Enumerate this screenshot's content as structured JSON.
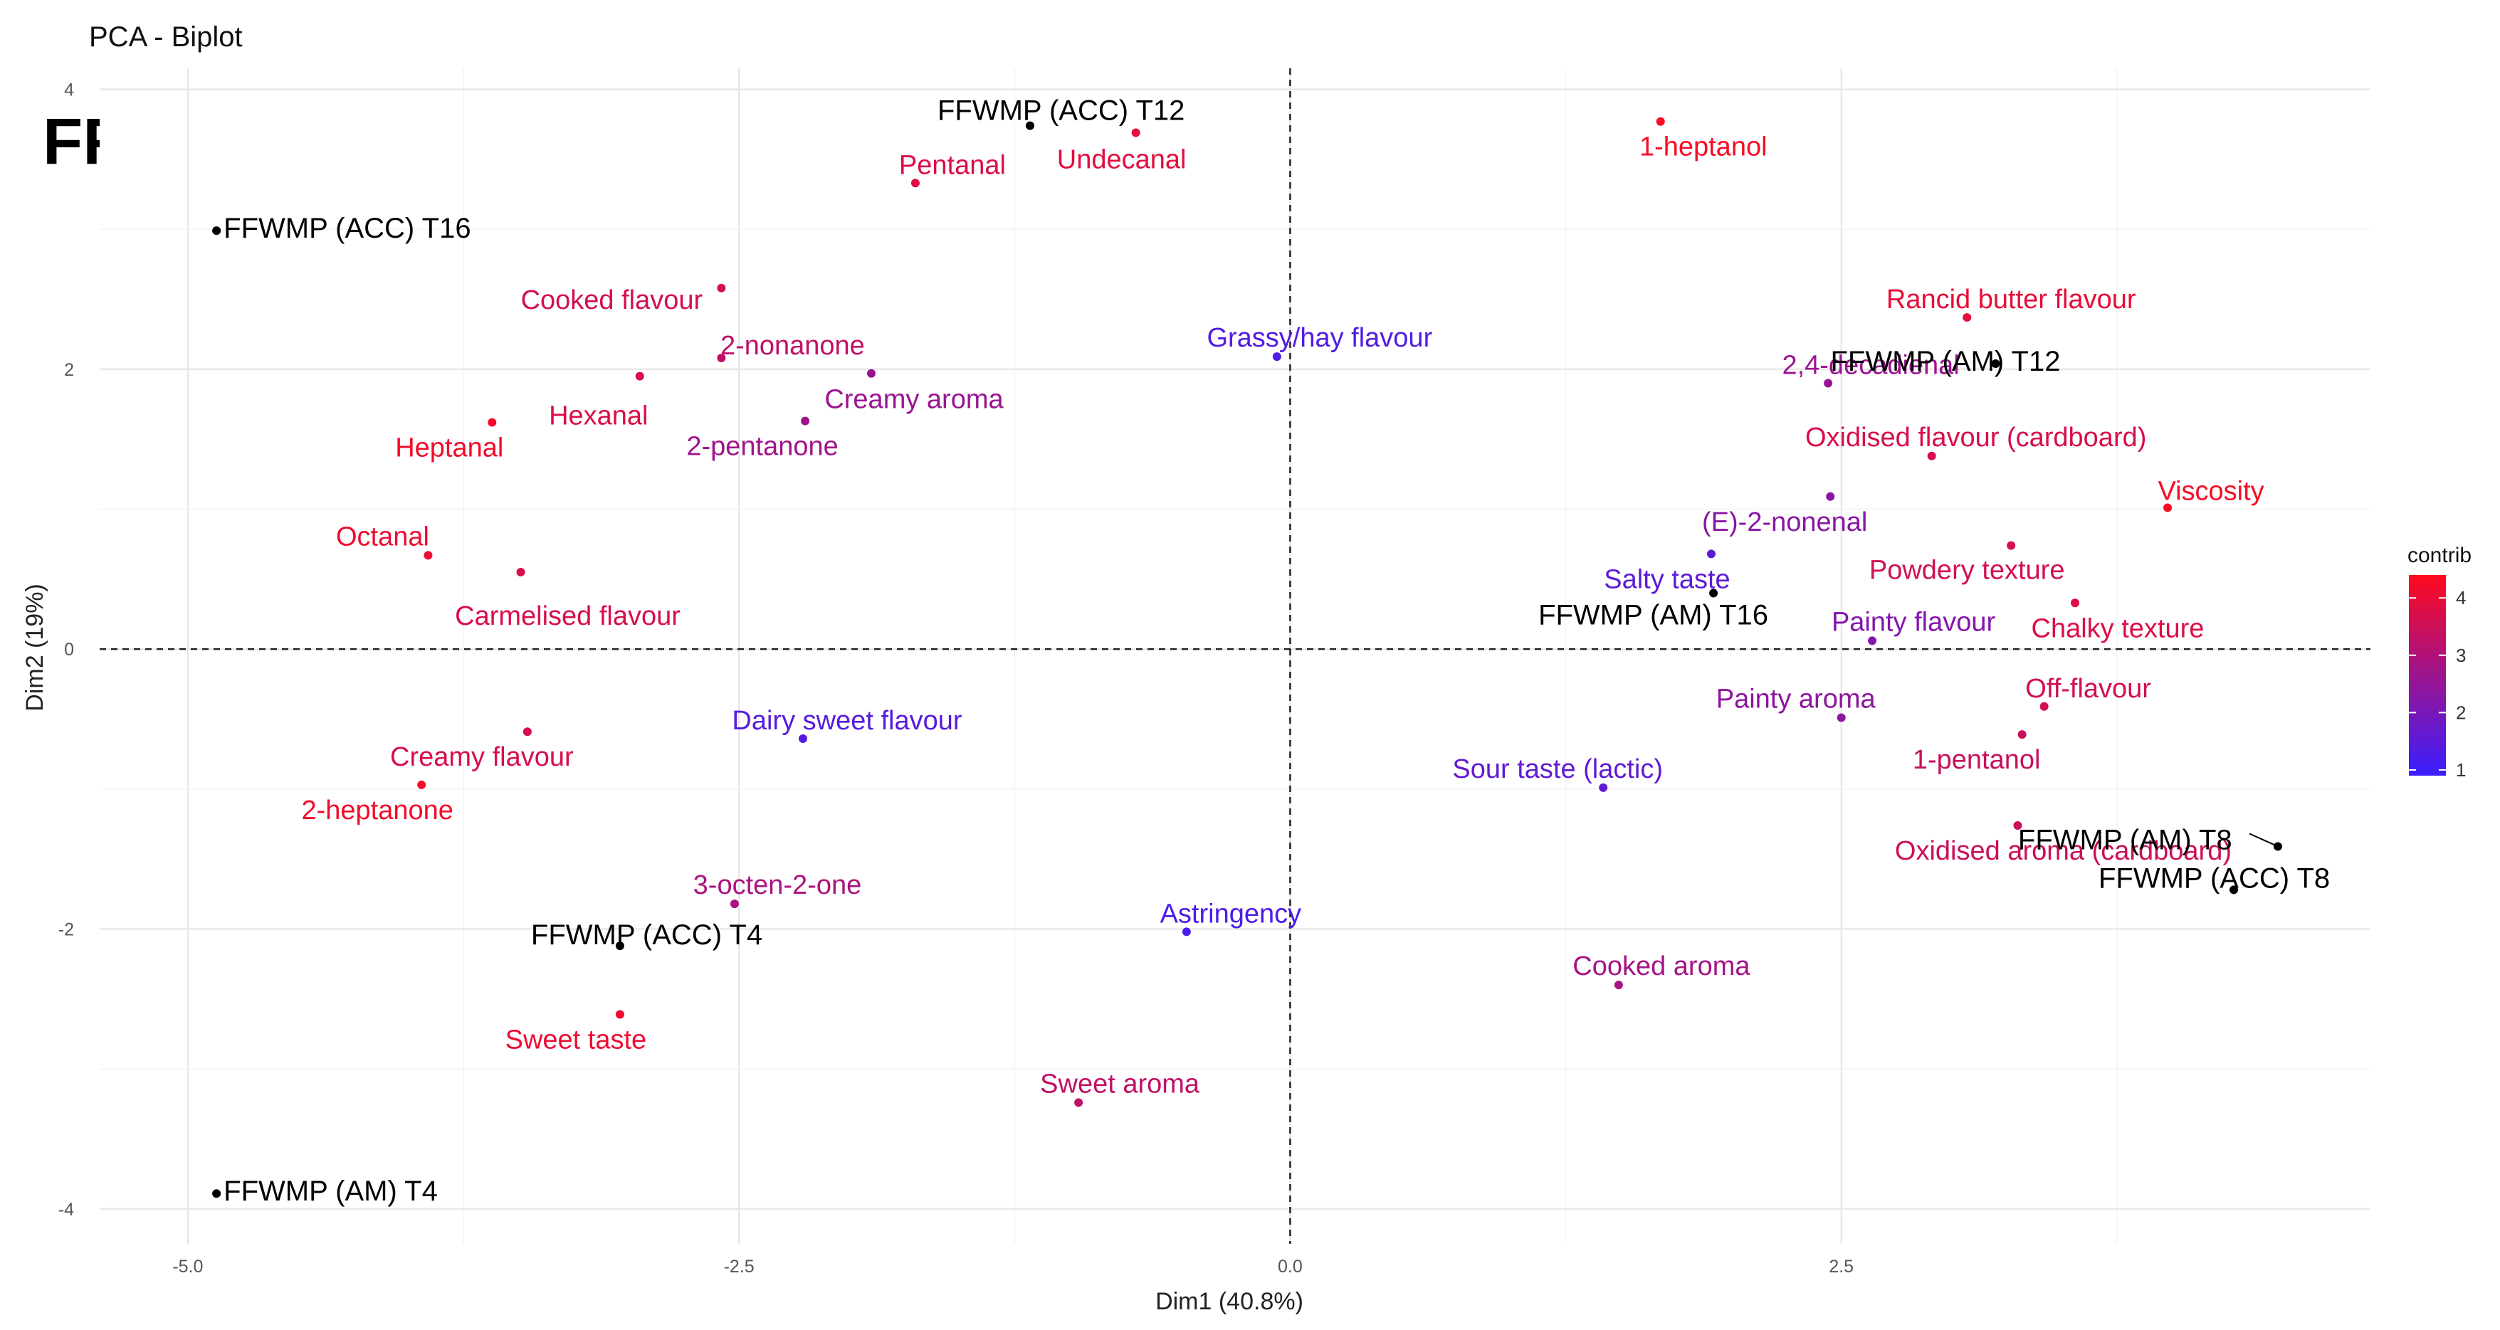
{
  "chart_data": {
    "type": "scatter",
    "title": "PCA - Biplot",
    "corner_label": "FFWMP",
    "xlabel": "Dim1 (40.8%)",
    "ylabel": "Dim2 (19%)",
    "xlim": [
      -5.4,
      4.9
    ],
    "ylim": [
      -4.25,
      4.15
    ],
    "xticks": [
      -5.0,
      -2.5,
      0.0,
      2.5
    ],
    "xtick_labels": [
      "-5.0",
      "-2.5",
      "0.0",
      "2.5"
    ],
    "yticks": [
      -4,
      -2,
      0,
      2,
      4
    ],
    "ytick_labels": [
      "-4",
      "-2",
      "0",
      "2",
      "4"
    ],
    "grid": true,
    "reference_lines": "dashed lines at x=0 and y=0",
    "legend": {
      "title": "contrib",
      "ticks": [
        "1",
        "2",
        "3",
        "4"
      ],
      "tick_values": [
        1,
        2,
        3,
        4
      ],
      "range": [
        0.9,
        4.4
      ],
      "low_color": "#3a1eff",
      "high_color": "#ff0a1e",
      "placement": "right"
    },
    "samples": [
      {
        "label": "FFWMP (ACC) T12",
        "x": -1.18,
        "y": 3.74
      },
      {
        "label": "FFWMP (ACC) T16",
        "x": -4.87,
        "y": 2.99
      },
      {
        "label": "FFWMP (AM) T12",
        "x": 3.2,
        "y": 2.04
      },
      {
        "label": "FFWMP (AM) T16",
        "x": 1.92,
        "y": 0.4
      },
      {
        "label": "FFWMP (AM) T8",
        "x": 4.48,
        "y": -1.41
      },
      {
        "label": "FFWMP (ACC) T8",
        "x": 4.28,
        "y": -1.72
      },
      {
        "label": "FFWMP (ACC) T4",
        "x": -3.04,
        "y": -2.12
      },
      {
        "label": "FFWMP (AM) T4",
        "x": -4.87,
        "y": -3.89
      }
    ],
    "variables": [
      {
        "label": "1-heptanol",
        "x": 1.68,
        "y": 3.77,
        "contrib": 4.3
      },
      {
        "label": "Undecanal",
        "x": -0.7,
        "y": 3.69,
        "contrib": 3.9
      },
      {
        "label": "Pentanal",
        "x": -1.7,
        "y": 3.33,
        "contrib": 3.8
      },
      {
        "label": "Cooked flavour",
        "x": -2.58,
        "y": 2.58,
        "contrib": 3.6
      },
      {
        "label": "2-nonanone",
        "x": -2.58,
        "y": 2.08,
        "contrib": 3.3
      },
      {
        "label": "Hexanal",
        "x": -2.95,
        "y": 1.95,
        "contrib": 3.8
      },
      {
        "label": "Creamy aroma",
        "x": -1.9,
        "y": 1.97,
        "contrib": 2.6
      },
      {
        "label": "Heptanal",
        "x": -3.62,
        "y": 1.62,
        "contrib": 4.2
      },
      {
        "label": "2-pentanone",
        "x": -2.2,
        "y": 1.63,
        "contrib": 2.7
      },
      {
        "label": "Octanal",
        "x": -3.91,
        "y": 0.67,
        "contrib": 4.1
      },
      {
        "label": "Carmelised flavour",
        "x": -3.49,
        "y": 0.55,
        "contrib": 3.7
      },
      {
        "label": "Grassy/hay flavour",
        "x": -0.06,
        "y": 2.09,
        "contrib": 1.3
      },
      {
        "label": "Rancid butter flavour",
        "x": 3.07,
        "y": 2.37,
        "contrib": 4.0
      },
      {
        "label": "2,4-decadienal",
        "x": 2.44,
        "y": 1.9,
        "contrib": 2.6
      },
      {
        "label": "Oxidised flavour (cardboard)",
        "x": 2.91,
        "y": 1.38,
        "contrib": 3.7
      },
      {
        "label": "Viscosity",
        "x": 3.98,
        "y": 1.01,
        "contrib": 4.3
      },
      {
        "label": "(E)-2-nonenal",
        "x": 2.45,
        "y": 1.09,
        "contrib": 2.3
      },
      {
        "label": "Salty taste",
        "x": 1.91,
        "y": 0.68,
        "contrib": 1.5
      },
      {
        "label": "Powdery texture",
        "x": 3.27,
        "y": 0.74,
        "contrib": 3.6
      },
      {
        "label": "Chalky texture",
        "x": 3.56,
        "y": 0.33,
        "contrib": 3.8
      },
      {
        "label": "Painty flavour",
        "x": 2.64,
        "y": 0.06,
        "contrib": 2.2
      },
      {
        "label": "Creamy flavour",
        "x": -3.46,
        "y": -0.59,
        "contrib": 3.7
      },
      {
        "label": "Dairy sweet flavour",
        "x": -2.21,
        "y": -0.64,
        "contrib": 1.4
      },
      {
        "label": "2-heptanone",
        "x": -3.94,
        "y": -0.97,
        "contrib": 4.2
      },
      {
        "label": "Painty aroma",
        "x": 2.5,
        "y": -0.49,
        "contrib": 2.4
      },
      {
        "label": "Off-flavour",
        "x": 3.42,
        "y": -0.41,
        "contrib": 3.6
      },
      {
        "label": "1-pentanol",
        "x": 3.32,
        "y": -0.61,
        "contrib": 3.4
      },
      {
        "label": "Sour taste (lactic)",
        "x": 1.42,
        "y": -0.99,
        "contrib": 1.6
      },
      {
        "label": "Oxidised aroma (cardboard)",
        "x": 3.3,
        "y": -1.26,
        "contrib": 3.5
      },
      {
        "label": "3-octen-2-one",
        "x": -2.52,
        "y": -1.82,
        "contrib": 2.9
      },
      {
        "label": "Astringency",
        "x": -0.47,
        "y": -2.02,
        "contrib": 1.2
      },
      {
        "label": "Sweet taste",
        "x": -3.04,
        "y": -2.61,
        "contrib": 4.1
      },
      {
        "label": "Cooked aroma",
        "x": 1.49,
        "y": -2.4,
        "contrib": 2.8
      },
      {
        "label": "Sweet aroma",
        "x": -0.96,
        "y": -3.24,
        "contrib": 3.3
      }
    ]
  }
}
